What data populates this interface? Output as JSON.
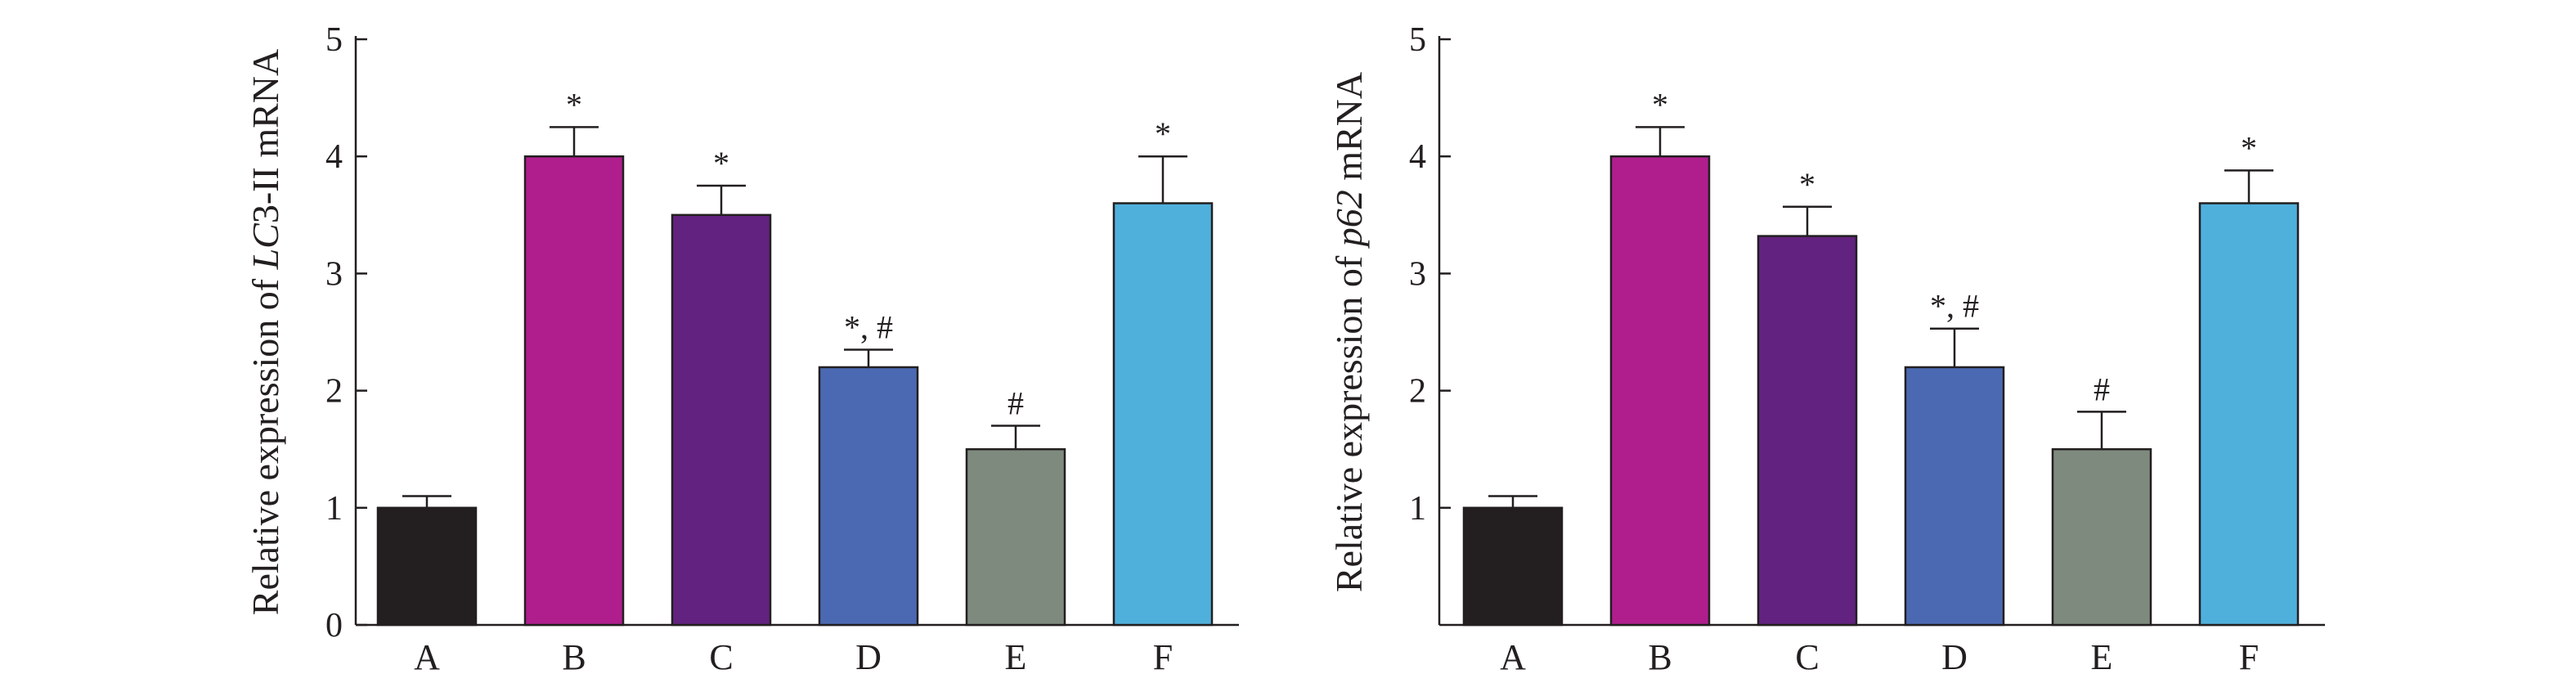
{
  "chart_data": [
    {
      "type": "bar",
      "ylabel_parts": [
        {
          "text": "Relative expression of ",
          "italic": false
        },
        {
          "text": "LC",
          "italic": true
        },
        {
          "text": "3-II mRNA",
          "italic": false
        }
      ],
      "categories": [
        "A",
        "B",
        "C",
        "D",
        "E",
        "F"
      ],
      "values": [
        1.0,
        4.0,
        3.5,
        2.2,
        1.5,
        3.6
      ],
      "errors": [
        0.1,
        0.25,
        0.25,
        0.15,
        0.2,
        0.4
      ],
      "annotations": [
        "",
        "*",
        "*",
        "*, #",
        "#",
        "*"
      ],
      "colors": [
        "#231f20",
        "#b01e8e",
        "#62227f",
        "#4b69b2",
        "#7f8a7e",
        "#4fb0dc"
      ],
      "ylim": [
        0,
        5
      ],
      "yticks": [
        "0",
        "1",
        "2",
        "3",
        "4",
        "5"
      ]
    },
    {
      "type": "bar",
      "ylabel_parts": [
        {
          "text": "Relative expression of ",
          "italic": false
        },
        {
          "text": "p62",
          "italic": true
        },
        {
          "text": " mRNA",
          "italic": false
        }
      ],
      "categories": [
        "A",
        "B",
        "C",
        "D",
        "E",
        "F"
      ],
      "values": [
        1.0,
        4.0,
        3.32,
        2.2,
        1.5,
        3.6
      ],
      "errors": [
        0.1,
        0.25,
        0.25,
        0.33,
        0.32,
        0.28
      ],
      "annotations": [
        "",
        "*",
        "*",
        "*, #",
        "#",
        "*"
      ],
      "colors": [
        "#231f20",
        "#b01e8e",
        "#62227f",
        "#4b69b2",
        "#7f8a7e",
        "#4fb0dc"
      ],
      "ylim": [
        0,
        5
      ],
      "yticks": [
        "1",
        "2",
        "3",
        "4",
        "5"
      ]
    }
  ]
}
